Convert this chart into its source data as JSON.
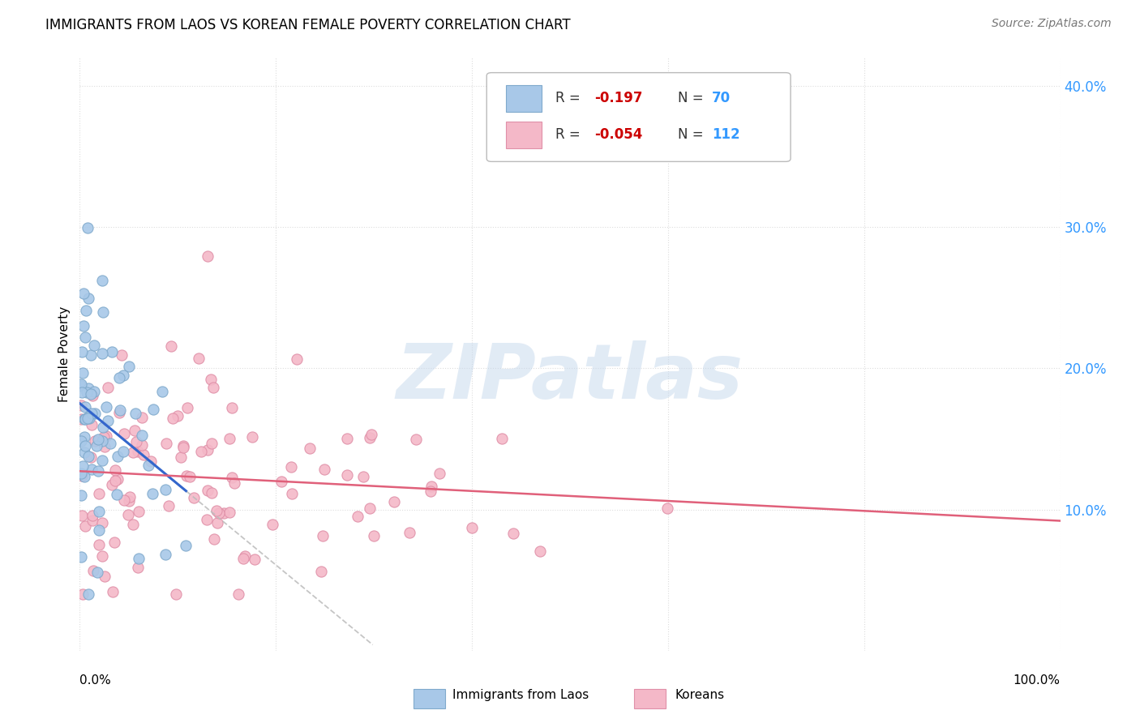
{
  "title": "IMMIGRANTS FROM LAOS VS KOREAN FEMALE POVERTY CORRELATION CHART",
  "source": "Source: ZipAtlas.com",
  "ylabel": "Female Poverty",
  "ylim": [
    0.0,
    0.42
  ],
  "xlim": [
    0.0,
    1.0
  ],
  "yticks": [
    0.1,
    0.2,
    0.3,
    0.4
  ],
  "ytick_labels": [
    "10.0%",
    "20.0%",
    "30.0%",
    "40.0%"
  ],
  "laos_R": -0.197,
  "laos_N": 70,
  "korean_R": -0.054,
  "korean_N": 112,
  "laos_color": "#a8c8e8",
  "laos_edge": "#80aacc",
  "laos_line_color": "#3366cc",
  "korean_color": "#f4b8c8",
  "korean_edge": "#e090a8",
  "korean_line_color": "#e0607a",
  "trend_dash_color": "#bbbbbb",
  "watermark": "ZIPatlas",
  "background_color": "#ffffff",
  "grid_color": "#dddddd",
  "ytick_color": "#3399ff",
  "legend_R_color": "#cc0000",
  "legend_N_color": "#3399ff"
}
